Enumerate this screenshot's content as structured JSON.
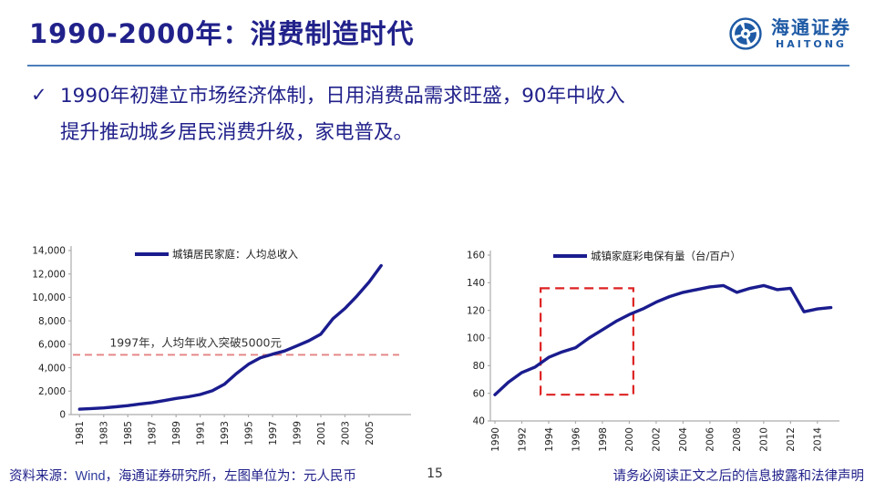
{
  "page": {
    "title": "1990-2000年：消费制造时代",
    "page_number": "15",
    "footer": {
      "source_prefix": "资料来源：",
      "source_wind": "Wind",
      "source_suffix": "，海通证券研究所，左图单位为：元人民币",
      "disclaimer": "请务必阅读正文之后的信息披露和法律声明"
    }
  },
  "logo": {
    "name_cn": "海通证券",
    "name_en": "HAITONG"
  },
  "bullet": {
    "marker": "✓",
    "lines": [
      "1990年初建立市场经济体制，日用消费品需求旺盛，90年中收入",
      "提升推动城乡居民消费升级，家电普及。"
    ]
  },
  "colors": {
    "text_navy": "#21218B",
    "line_navy": "#1A1C8E",
    "separator_blue": "#4C7FBA",
    "logo_blue": "#1E5AA5",
    "annotation_red": "#E58383",
    "highlight_red": "#DD2222",
    "axis_gray": "#ACACAC",
    "tick_text": "#222222"
  },
  "chart_data": [
    {
      "type": "line",
      "legend": "城镇居民家庭：人均总收入",
      "unit": "元人民币",
      "x": [
        1981,
        1982,
        1983,
        1984,
        1985,
        1986,
        1987,
        1988,
        1989,
        1990,
        1991,
        1992,
        1993,
        1994,
        1995,
        1996,
        1997,
        1998,
        1999,
        2000,
        2001,
        2002,
        2003,
        2004,
        2005,
        2006
      ],
      "values": [
        460,
        510,
        565,
        660,
        760,
        900,
        1020,
        1190,
        1380,
        1520,
        1710,
        2030,
        2580,
        3500,
        4290,
        4850,
        5160,
        5430,
        5860,
        6300,
        6870,
        8180,
        9060,
        10130,
        11320,
        12720
      ],
      "xlim": [
        1980.3,
        2008.1
      ],
      "ylim": [
        0,
        14000
      ],
      "yticks": [
        0,
        2000,
        4000,
        6000,
        8000,
        10000,
        12000,
        14000
      ],
      "ytick_format": "comma",
      "xticks": [
        1981,
        1983,
        1985,
        1987,
        1989,
        1991,
        1993,
        1995,
        1997,
        1999,
        2001,
        2003,
        2005
      ],
      "legend_position": "top",
      "grid": false,
      "annotations": {
        "hline": {
          "y": 5100,
          "label": "1997年，人均年收入突破5000元",
          "label_at": {
            "x": 1983.5,
            "y": 5800
          }
        }
      }
    },
    {
      "type": "line",
      "legend": "城镇家庭彩电保有量（台/百户）",
      "unit": "台/百户",
      "x": [
        1990,
        1991,
        1992,
        1993,
        1994,
        1995,
        1996,
        1997,
        1998,
        1999,
        2000,
        2001,
        2002,
        2003,
        2004,
        2005,
        2006,
        2007,
        2008,
        2009,
        2010,
        2011,
        2012,
        2013,
        2014,
        2015
      ],
      "values": [
        59,
        68,
        75,
        79,
        86,
        90,
        93,
        100,
        106,
        112,
        117,
        121,
        126,
        130,
        133,
        135,
        137,
        138,
        133,
        136,
        138,
        135,
        136,
        119,
        121,
        122
      ],
      "xlim": [
        1989.66,
        2015.3
      ],
      "ylim": [
        40,
        160
      ],
      "yticks": [
        40,
        60,
        80,
        100,
        120,
        140,
        160
      ],
      "xticks": [
        1990,
        1992,
        1994,
        1996,
        1998,
        2000,
        2002,
        2004,
        2006,
        2008,
        2010,
        2012,
        2014
      ],
      "legend_position": "top",
      "grid": false,
      "annotations": {
        "rect": {
          "x0": 1993.4,
          "y0": 59,
          "x1": 2000.3,
          "y1": 136
        }
      }
    }
  ]
}
